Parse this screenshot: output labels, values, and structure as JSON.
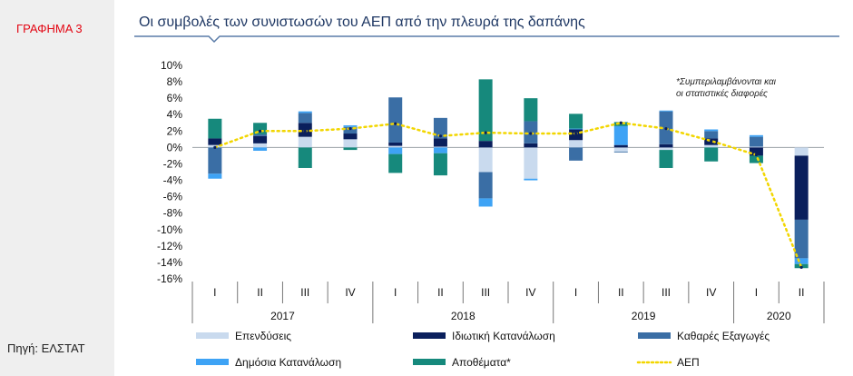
{
  "figure_label": "ΓΡΑΦΗΜΑ 3",
  "source": "Πηγή: ΕΛΣΤΑΤ",
  "colors": {
    "investment": "#c9daee",
    "private": "#0a1f5c",
    "net_exports": "#3a6ea5",
    "public": "#3ea3f5",
    "inventories": "#16897c",
    "gdp": "#f2d600",
    "title": "#1f3864",
    "accent": "#e30613"
  },
  "chart_data": {
    "type": "bar",
    "stacked": true,
    "title": "Οι συμβολές των συνιστωσών του ΑΕΠ από την πλευρά της δαπάνης",
    "ylim": [
      -16,
      10
    ],
    "yticks": [
      "10%",
      "8%",
      "6%",
      "4%",
      "2%",
      "0%",
      "-2%",
      "-4%",
      "-6%",
      "-8%",
      "-10%",
      "-12%",
      "-14%",
      "-16%"
    ],
    "quarters": [
      "I",
      "II",
      "III",
      "IV",
      "I",
      "II",
      "III",
      "IV",
      "I",
      "II",
      "III",
      "IV",
      "I",
      "II"
    ],
    "years": [
      {
        "label": "2017",
        "count": 4
      },
      {
        "label": "2018",
        "count": 4
      },
      {
        "label": "2019",
        "count": 4
      },
      {
        "label": "2020",
        "count": 2
      }
    ],
    "annotation": [
      "*Συμπεριλαμβάνονται και",
      "οι στατιστικές διαφορές"
    ],
    "series": [
      {
        "name": "Επενδύσεις",
        "key": "investment",
        "values": [
          0.3,
          0.5,
          1.3,
          1.0,
          0.2,
          0.1,
          -3.0,
          -3.8,
          0.9,
          -0.5,
          -0.3,
          0.3,
          0.1,
          -1.0
        ]
      },
      {
        "name": "Ιδιωτική Κατανάλωση",
        "key": "private",
        "values": [
          0.8,
          0.9,
          1.7,
          0.7,
          0.4,
          1.0,
          0.8,
          0.5,
          1.3,
          0.3,
          0.4,
          0.8,
          -1.0,
          -7.8
        ]
      },
      {
        "name": "Καθαρές Εξαγωγές",
        "key": "net_exports",
        "values": [
          -3.2,
          0.2,
          1.2,
          0.8,
          5.5,
          2.5,
          -3.2,
          2.7,
          -1.6,
          -0.1,
          4.0,
          0.9,
          1.2,
          -4.7
        ]
      },
      {
        "name": "Δημόσια Κατανάλωση",
        "key": "public",
        "values": [
          -0.6,
          -0.4,
          0.2,
          0.2,
          -0.8,
          -0.7,
          -1.0,
          -0.2,
          0.1,
          2.3,
          0.1,
          0.2,
          0.2,
          -0.7
        ]
      },
      {
        "name": "Αποθέματα*",
        "key": "inventories",
        "values": [
          2.4,
          1.4,
          -2.5,
          -0.3,
          -2.3,
          -2.7,
          7.5,
          2.8,
          1.8,
          0.5,
          -2.2,
          -1.7,
          -0.9,
          -0.5
        ]
      },
      {
        "name": "ΑΕΠ",
        "key": "gdp",
        "type": "line",
        "values": [
          0.0,
          2.0,
          2.0,
          2.3,
          2.9,
          1.4,
          1.8,
          1.7,
          1.7,
          3.0,
          2.3,
          0.8,
          -0.9,
          -14.6
        ]
      }
    ]
  }
}
